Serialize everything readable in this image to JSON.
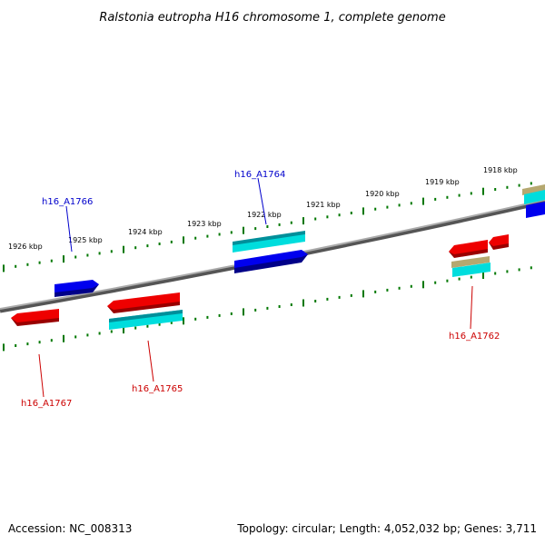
{
  "title": "Ralstonia eutropha H16 chromosome 1, complete genome",
  "footer": {
    "accession": "Accession: NC_008313",
    "topology": "Topology: circular; Length: 4,052,032 bp; Genes: 3,711"
  },
  "ticks": [
    "1926 kbp",
    "1925 kbp",
    "1924 kbp",
    "1923 kbp",
    "1922 kbp",
    "1921 kbp",
    "1920 kbp",
    "1919 kbp",
    "1918 kbp"
  ],
  "genes": {
    "h16_A1764": "h16_A1764",
    "h16_A1766": "h16_A1766",
    "h16_A1762": "h16_A1762",
    "h16_A1765": "h16_A1765",
    "h16_A1767": "h16_A1767"
  },
  "colors": {
    "forward_gene": "#0000ee",
    "reverse_gene": "#ee0000",
    "cds_feature": "#00dddd",
    "misc_feature": "#b5a870",
    "tick": "#007700",
    "backbone": "#888888"
  }
}
